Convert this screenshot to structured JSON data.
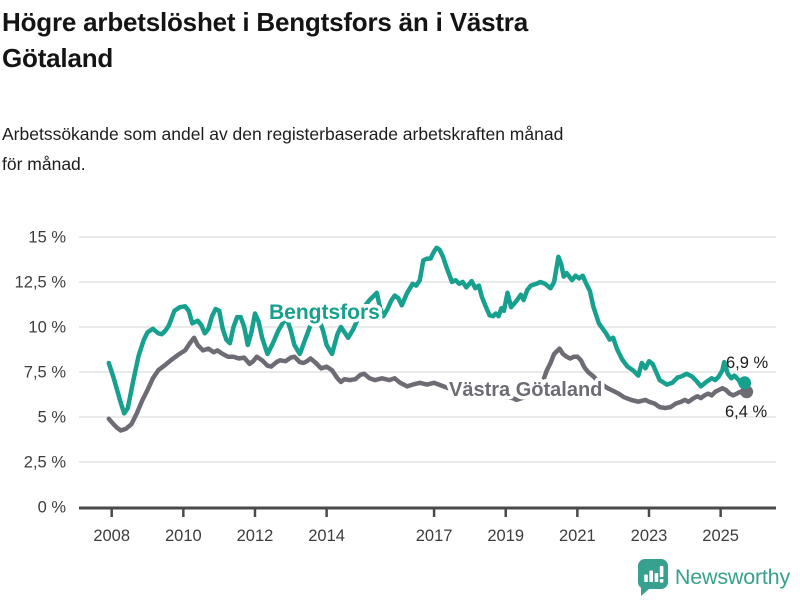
{
  "header": {
    "title": "Högre arbetslöshet i Bengtsfors än i Västra\nGötaland",
    "subtitle": "Arbetssökande som andel av den registerbaserade arbetskraften månad\nför månad."
  },
  "brand": {
    "name": "Newsworthy",
    "icon": "newsworthy-bar-chart-bubble"
  },
  "colors": {
    "bengtsfors": "#18a08f",
    "vastra_gotaland": "#6f6b75",
    "axis": "#4a4a4a",
    "grid": "#e4e4e4",
    "tick_text": "#3d3d3d",
    "end_label_text": "#1a1a1a",
    "brand_teal": "#37a08e"
  },
  "chart_data": {
    "type": "line",
    "title": "Högre arbetslöshet i Bengtsfors än i Västra Götaland",
    "subtitle": "Arbetssökande som andel av den registerbaserade arbetskraften månad för månad.",
    "xlabel": "",
    "ylabel": "",
    "grid": true,
    "legend_position": "inline-labels",
    "ylim": [
      0,
      15
    ],
    "xlim": [
      2007.1,
      2026.5
    ],
    "y_ticks": [
      0,
      2.5,
      5,
      7.5,
      10,
      12.5,
      15
    ],
    "y_tick_labels": [
      "0 %",
      "2,5 %",
      "5 %",
      "7,5 %",
      "10 %",
      "12,5 %",
      "15 %"
    ],
    "x_ticks": [
      2008,
      2010,
      2012,
      2014,
      2017,
      2019,
      2021,
      2023,
      2025
    ],
    "x_tick_labels": [
      "2008",
      "2010",
      "2012",
      "2014",
      "2017",
      "2019",
      "2021",
      "2023",
      "2025"
    ],
    "series": [
      {
        "name": "Bengtsfors",
        "color": "#18a08f",
        "end_label": "6,9 %",
        "end_value": 6.9,
        "points": [
          [
            2007.92,
            8.0
          ],
          [
            2008.05,
            7.2
          ],
          [
            2008.15,
            6.5
          ],
          [
            2008.25,
            5.8
          ],
          [
            2008.35,
            5.2
          ],
          [
            2008.45,
            5.5
          ],
          [
            2008.6,
            7.0
          ],
          [
            2008.75,
            8.4
          ],
          [
            2008.9,
            9.3
          ],
          [
            2009.0,
            9.7
          ],
          [
            2009.15,
            9.9
          ],
          [
            2009.3,
            9.65
          ],
          [
            2009.4,
            9.6
          ],
          [
            2009.5,
            9.8
          ],
          [
            2009.6,
            10.1
          ],
          [
            2009.75,
            10.9
          ],
          [
            2009.9,
            11.1
          ],
          [
            2010.05,
            11.15
          ],
          [
            2010.15,
            10.9
          ],
          [
            2010.25,
            10.2
          ],
          [
            2010.4,
            10.35
          ],
          [
            2010.5,
            10.1
          ],
          [
            2010.6,
            9.65
          ],
          [
            2010.7,
            9.9
          ],
          [
            2010.8,
            10.6
          ],
          [
            2010.9,
            11.0
          ],
          [
            2011.0,
            10.9
          ],
          [
            2011.1,
            9.9
          ],
          [
            2011.2,
            9.3
          ],
          [
            2011.3,
            9.1
          ],
          [
            2011.4,
            10.0
          ],
          [
            2011.5,
            10.55
          ],
          [
            2011.6,
            10.55
          ],
          [
            2011.7,
            10.0
          ],
          [
            2011.8,
            9.0
          ],
          [
            2011.9,
            9.7
          ],
          [
            2012.0,
            10.75
          ],
          [
            2012.1,
            10.3
          ],
          [
            2012.2,
            9.4
          ],
          [
            2012.35,
            8.5
          ],
          [
            2012.5,
            9.1
          ],
          [
            2012.65,
            9.8
          ],
          [
            2012.8,
            10.3
          ],
          [
            2012.9,
            10.4
          ],
          [
            2013.0,
            9.8
          ],
          [
            2013.1,
            9.0
          ],
          [
            2013.25,
            8.5
          ],
          [
            2013.4,
            9.3
          ],
          [
            2013.55,
            10.1
          ],
          [
            2013.7,
            10.4
          ],
          [
            2013.8,
            10.35
          ],
          [
            2013.9,
            9.8
          ],
          [
            2014.0,
            9.0
          ],
          [
            2014.15,
            8.5
          ],
          [
            2014.3,
            9.6
          ],
          [
            2014.4,
            10.0
          ],
          [
            2014.5,
            9.7
          ],
          [
            2014.6,
            9.4
          ],
          [
            2014.75,
            9.9
          ],
          [
            2014.9,
            10.6
          ],
          [
            2015.0,
            11.0
          ],
          [
            2015.2,
            11.5
          ],
          [
            2015.4,
            11.9
          ],
          [
            2015.5,
            11.0
          ],
          [
            2015.58,
            10.6
          ],
          [
            2015.7,
            11.0
          ],
          [
            2015.8,
            11.45
          ],
          [
            2015.9,
            11.75
          ],
          [
            2016.0,
            11.6
          ],
          [
            2016.1,
            11.2
          ],
          [
            2016.25,
            11.9
          ],
          [
            2016.4,
            12.4
          ],
          [
            2016.5,
            12.3
          ],
          [
            2016.6,
            12.6
          ],
          [
            2016.7,
            13.7
          ],
          [
            2016.8,
            13.8
          ],
          [
            2016.9,
            13.8
          ],
          [
            2017.0,
            14.2
          ],
          [
            2017.07,
            14.4
          ],
          [
            2017.15,
            14.3
          ],
          [
            2017.25,
            13.9
          ],
          [
            2017.35,
            13.3
          ],
          [
            2017.5,
            12.5
          ],
          [
            2017.6,
            12.6
          ],
          [
            2017.7,
            12.4
          ],
          [
            2017.8,
            12.5
          ],
          [
            2017.9,
            12.2
          ],
          [
            2018.05,
            12.55
          ],
          [
            2018.15,
            12.15
          ],
          [
            2018.25,
            12.3
          ],
          [
            2018.33,
            11.7
          ],
          [
            2018.45,
            11.1
          ],
          [
            2018.55,
            10.65
          ],
          [
            2018.65,
            10.6
          ],
          [
            2018.72,
            10.75
          ],
          [
            2018.8,
            10.6
          ],
          [
            2018.88,
            11.05
          ],
          [
            2018.95,
            10.9
          ],
          [
            2019.05,
            11.9
          ],
          [
            2019.15,
            11.1
          ],
          [
            2019.3,
            11.45
          ],
          [
            2019.42,
            11.8
          ],
          [
            2019.5,
            11.5
          ],
          [
            2019.6,
            12.05
          ],
          [
            2019.7,
            12.3
          ],
          [
            2019.85,
            12.4
          ],
          [
            2019.97,
            12.5
          ],
          [
            2020.1,
            12.4
          ],
          [
            2020.25,
            12.15
          ],
          [
            2020.35,
            12.5
          ],
          [
            2020.47,
            13.9
          ],
          [
            2020.55,
            13.5
          ],
          [
            2020.62,
            12.8
          ],
          [
            2020.7,
            13.0
          ],
          [
            2020.85,
            12.6
          ],
          [
            2020.95,
            12.85
          ],
          [
            2021.05,
            12.7
          ],
          [
            2021.15,
            12.85
          ],
          [
            2021.25,
            12.4
          ],
          [
            2021.35,
            12.0
          ],
          [
            2021.45,
            11.1
          ],
          [
            2021.6,
            10.2
          ],
          [
            2021.8,
            9.65
          ],
          [
            2021.9,
            9.3
          ],
          [
            2022.0,
            9.4
          ],
          [
            2022.1,
            8.8
          ],
          [
            2022.25,
            8.2
          ],
          [
            2022.4,
            7.8
          ],
          [
            2022.55,
            7.6
          ],
          [
            2022.7,
            7.3
          ],
          [
            2022.8,
            8.0
          ],
          [
            2022.9,
            7.7
          ],
          [
            2023.0,
            8.1
          ],
          [
            2023.1,
            7.95
          ],
          [
            2023.3,
            7.05
          ],
          [
            2023.5,
            6.8
          ],
          [
            2023.65,
            6.9
          ],
          [
            2023.8,
            7.2
          ],
          [
            2023.9,
            7.25
          ],
          [
            2024.05,
            7.4
          ],
          [
            2024.2,
            7.25
          ],
          [
            2024.3,
            7.05
          ],
          [
            2024.45,
            6.7
          ],
          [
            2024.6,
            6.95
          ],
          [
            2024.75,
            7.15
          ],
          [
            2024.85,
            7.05
          ],
          [
            2024.95,
            7.25
          ],
          [
            2025.05,
            7.6
          ],
          [
            2025.1,
            8.05
          ],
          [
            2025.2,
            7.4
          ],
          [
            2025.3,
            7.15
          ],
          [
            2025.38,
            7.3
          ],
          [
            2025.5,
            7.05
          ],
          [
            2025.58,
            6.8
          ],
          [
            2025.67,
            6.9
          ]
        ]
      },
      {
        "name": "Västra Götaland",
        "color": "#6f6b75",
        "end_label": "6,4 %",
        "end_value": 6.4,
        "points": [
          [
            2007.92,
            4.9
          ],
          [
            2008.05,
            4.6
          ],
          [
            2008.15,
            4.4
          ],
          [
            2008.25,
            4.25
          ],
          [
            2008.4,
            4.35
          ],
          [
            2008.55,
            4.6
          ],
          [
            2008.7,
            5.2
          ],
          [
            2008.85,
            5.9
          ],
          [
            2009.0,
            6.5
          ],
          [
            2009.15,
            7.15
          ],
          [
            2009.3,
            7.6
          ],
          [
            2009.5,
            7.9
          ],
          [
            2009.65,
            8.15
          ],
          [
            2009.85,
            8.45
          ],
          [
            2010.05,
            8.7
          ],
          [
            2010.2,
            9.15
          ],
          [
            2010.3,
            9.4
          ],
          [
            2010.4,
            9.0
          ],
          [
            2010.55,
            8.7
          ],
          [
            2010.7,
            8.8
          ],
          [
            2010.85,
            8.6
          ],
          [
            2010.95,
            8.7
          ],
          [
            2011.1,
            8.5
          ],
          [
            2011.25,
            8.35
          ],
          [
            2011.4,
            8.35
          ],
          [
            2011.55,
            8.25
          ],
          [
            2011.7,
            8.3
          ],
          [
            2011.85,
            7.95
          ],
          [
            2011.95,
            8.1
          ],
          [
            2012.05,
            8.35
          ],
          [
            2012.2,
            8.15
          ],
          [
            2012.35,
            7.85
          ],
          [
            2012.45,
            7.8
          ],
          [
            2012.6,
            8.05
          ],
          [
            2012.7,
            8.15
          ],
          [
            2012.85,
            8.1
          ],
          [
            2013.0,
            8.3
          ],
          [
            2013.1,
            8.35
          ],
          [
            2013.25,
            8.05
          ],
          [
            2013.35,
            8.0
          ],
          [
            2013.45,
            8.1
          ],
          [
            2013.55,
            8.25
          ],
          [
            2013.7,
            8.0
          ],
          [
            2013.85,
            7.7
          ],
          [
            2014.0,
            7.8
          ],
          [
            2014.15,
            7.6
          ],
          [
            2014.3,
            7.15
          ],
          [
            2014.4,
            6.95
          ],
          [
            2014.5,
            7.1
          ],
          [
            2014.65,
            7.05
          ],
          [
            2014.8,
            7.1
          ],
          [
            2014.95,
            7.35
          ],
          [
            2015.05,
            7.4
          ],
          [
            2015.2,
            7.15
          ],
          [
            2015.35,
            7.05
          ],
          [
            2015.55,
            7.15
          ],
          [
            2015.75,
            7.05
          ],
          [
            2015.9,
            7.15
          ],
          [
            2016.05,
            6.9
          ],
          [
            2016.25,
            6.7
          ],
          [
            2016.4,
            6.8
          ],
          [
            2016.6,
            6.9
          ],
          [
            2016.8,
            6.8
          ],
          [
            2017.0,
            6.9
          ],
          [
            2017.2,
            6.75
          ],
          [
            2017.4,
            6.6
          ],
          [
            2017.6,
            6.55
          ],
          [
            2017.8,
            6.5
          ],
          [
            2018.0,
            6.55
          ],
          [
            2018.3,
            6.5
          ],
          [
            2018.5,
            6.35
          ],
          [
            2018.7,
            6.25
          ],
          [
            2018.9,
            6.15
          ],
          [
            2019.05,
            6.1
          ],
          [
            2019.2,
            6.05
          ],
          [
            2019.3,
            5.95
          ],
          [
            2019.45,
            6.05
          ],
          [
            2019.6,
            6.15
          ],
          [
            2019.8,
            6.3
          ],
          [
            2019.95,
            6.6
          ],
          [
            2020.05,
            7.05
          ],
          [
            2020.15,
            7.6
          ],
          [
            2020.25,
            8.0
          ],
          [
            2020.35,
            8.5
          ],
          [
            2020.5,
            8.8
          ],
          [
            2020.6,
            8.5
          ],
          [
            2020.7,
            8.35
          ],
          [
            2020.8,
            8.25
          ],
          [
            2020.9,
            8.35
          ],
          [
            2021.0,
            8.35
          ],
          [
            2021.1,
            8.15
          ],
          [
            2021.2,
            7.75
          ],
          [
            2021.3,
            7.5
          ],
          [
            2021.45,
            7.25
          ],
          [
            2021.55,
            7.05
          ],
          [
            2021.7,
            6.8
          ],
          [
            2021.85,
            6.6
          ],
          [
            2022.0,
            6.45
          ],
          [
            2022.15,
            6.3
          ],
          [
            2022.3,
            6.1
          ],
          [
            2022.5,
            5.95
          ],
          [
            2022.7,
            5.85
          ],
          [
            2022.9,
            5.95
          ],
          [
            2023.0,
            5.85
          ],
          [
            2023.15,
            5.75
          ],
          [
            2023.3,
            5.55
          ],
          [
            2023.45,
            5.5
          ],
          [
            2023.6,
            5.55
          ],
          [
            2023.75,
            5.75
          ],
          [
            2023.9,
            5.85
          ],
          [
            2024.0,
            5.95
          ],
          [
            2024.1,
            5.85
          ],
          [
            2024.25,
            6.05
          ],
          [
            2024.35,
            6.15
          ],
          [
            2024.45,
            6.05
          ],
          [
            2024.55,
            6.2
          ],
          [
            2024.65,
            6.3
          ],
          [
            2024.75,
            6.2
          ],
          [
            2024.85,
            6.4
          ],
          [
            2024.95,
            6.5
          ],
          [
            2025.05,
            6.6
          ],
          [
            2025.15,
            6.5
          ],
          [
            2025.25,
            6.3
          ],
          [
            2025.35,
            6.2
          ],
          [
            2025.45,
            6.3
          ],
          [
            2025.55,
            6.4
          ],
          [
            2025.62,
            6.3
          ],
          [
            2025.67,
            6.4
          ]
        ]
      }
    ]
  }
}
